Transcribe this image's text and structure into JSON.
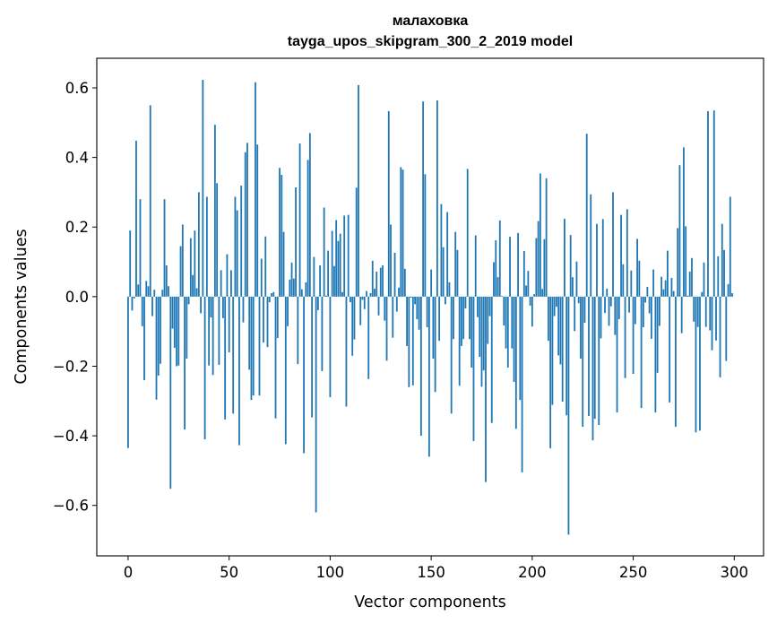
{
  "chart_data": {
    "type": "bar",
    "title": "малаховка",
    "subtitle": "tayga_upos_skipgram_300_2_2019 model",
    "xlabel": "Vector components",
    "ylabel": "Components values",
    "x_start": 0,
    "xlim": [
      -15.5,
      314.5
    ],
    "ylim": [
      -0.745,
      0.685
    ],
    "xticks": [
      0,
      50,
      100,
      150,
      200,
      250,
      300
    ],
    "xtick_labels": [
      "0",
      "50",
      "100",
      "150",
      "200",
      "250",
      "300"
    ],
    "yticks": [
      -0.6,
      -0.4,
      -0.2,
      0.0,
      0.2,
      0.4,
      0.6
    ],
    "ytick_labels": [
      "−0.6",
      "−0.4",
      "−0.2",
      "0.0",
      "0.2",
      "0.4",
      "0.6"
    ],
    "grid": false,
    "bar_color": "#1f77b4",
    "values": [
      -0.435,
      0.19,
      -0.04,
      -0.005,
      0.448,
      0.035,
      0.28,
      -0.085,
      -0.24,
      0.045,
      0.03,
      0.55,
      -0.056,
      0.02,
      -0.296,
      -0.227,
      -0.193,
      0.02,
      0.28,
      0.09,
      0.03,
      -0.552,
      -0.092,
      -0.147,
      -0.2,
      -0.198,
      0.145,
      0.207,
      -0.382,
      -0.178,
      -0.022,
      0.168,
      0.062,
      0.19,
      0.024,
      0.3,
      -0.048,
      0.623,
      -0.41,
      0.287,
      -0.198,
      -0.06,
      -0.225,
      0.494,
      0.326,
      -0.196,
      0.076,
      -0.062,
      -0.353,
      0.122,
      -0.16,
      0.076,
      -0.336,
      0.287,
      0.248,
      -0.427,
      0.319,
      -0.074,
      0.415,
      0.442,
      -0.21,
      -0.297,
      -0.284,
      0.616,
      0.437,
      -0.284,
      0.109,
      -0.132,
      0.173,
      -0.145,
      -0.016,
      0.01,
      0.013,
      -0.35,
      -0.119,
      0.37,
      0.35,
      0.186,
      -0.424,
      -0.085,
      0.049,
      0.098,
      0.052,
      0.314,
      -0.194,
      0.44,
      0.021,
      -0.45,
      0.041,
      0.393,
      0.47,
      -0.347,
      0.114,
      -0.62,
      -0.039,
      0.09,
      -0.214,
      0.256,
      0.003,
      0.132,
      -0.289,
      0.189,
      0.088,
      0.22,
      0.16,
      0.181,
      0.013,
      0.233,
      -0.316,
      0.235,
      -0.016,
      -0.17,
      -0.123,
      0.313,
      0.608,
      -0.082,
      -0.009,
      -0.036,
      0.016,
      -0.237,
      0.01,
      0.103,
      0.023,
      0.072,
      -0.054,
      0.083,
      0.09,
      -0.069,
      -0.184,
      0.533,
      0.207,
      -0.118,
      0.126,
      -0.043,
      0.026,
      0.372,
      0.365,
      0.08,
      -0.142,
      -0.26,
      -0.003,
      -0.255,
      -0.022,
      -0.065,
      -0.095,
      -0.4,
      0.561,
      0.352,
      -0.088,
      -0.46,
      0.078,
      -0.178,
      -0.274,
      0.564,
      -0.127,
      0.266,
      0.142,
      -0.022,
      0.243,
      0.041,
      -0.336,
      -0.122,
      0.186,
      0.134,
      -0.256,
      -0.142,
      -0.122,
      -0.034,
      0.367,
      -0.122,
      -0.204,
      -0.415,
      0.176,
      -0.059,
      -0.173,
      -0.259,
      -0.212,
      -0.533,
      -0.136,
      -0.056,
      -0.363,
      0.099,
      0.162,
      0.056,
      0.219,
      0.002,
      -0.083,
      -0.149,
      -0.204,
      0.172,
      -0.149,
      -0.245,
      -0.38,
      0.183,
      -0.297,
      -0.505,
      0.131,
      0.032,
      0.074,
      -0.026,
      -0.086,
      0.007,
      0.168,
      0.217,
      0.354,
      0.022,
      0.165,
      0.34,
      -0.127,
      -0.436,
      -0.311,
      -0.056,
      -0.029,
      -0.169,
      -0.195,
      -0.302,
      0.224,
      -0.341,
      -0.684,
      0.177,
      0.056,
      -0.099,
      0.101,
      -0.019,
      -0.178,
      -0.374,
      -0.075,
      0.468,
      -0.343,
      0.294,
      -0.413,
      -0.351,
      0.209,
      -0.369,
      -0.12,
      0.223,
      -0.047,
      0.023,
      -0.084,
      -0.028,
      0.3,
      -0.11,
      -0.333,
      -0.065,
      0.235,
      0.093,
      -0.234,
      0.251,
      -0.046,
      0.075,
      -0.222,
      -0.079,
      0.166,
      0.103,
      -0.32,
      -0.088,
      -0.017,
      0.028,
      -0.048,
      -0.121,
      0.078,
      -0.333,
      -0.219,
      -0.084,
      0.057,
      0.021,
      0.047,
      0.132,
      -0.304,
      0.054,
      0.016,
      -0.374,
      0.197,
      0.378,
      -0.105,
      0.429,
      0.202,
      0.003,
      0.072,
      0.111,
      -0.072,
      -0.39,
      -0.087,
      -0.385,
      0.013,
      0.098,
      -0.087,
      0.533,
      -0.097,
      -0.154,
      0.535,
      -0.126,
      0.116,
      -0.232,
      0.209,
      0.134,
      -0.185,
      0.036,
      0.287,
      0.01
    ]
  }
}
